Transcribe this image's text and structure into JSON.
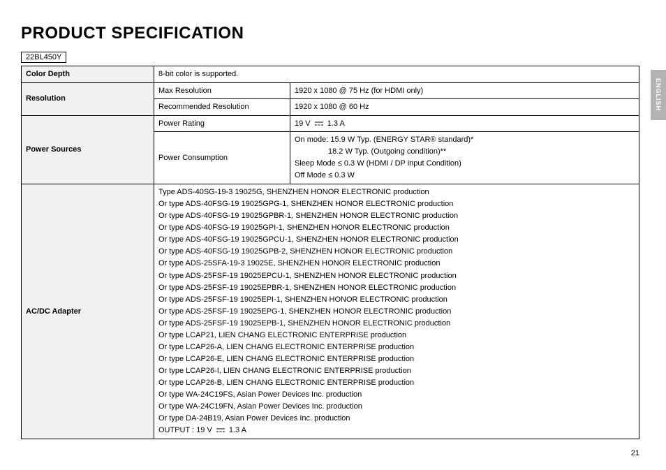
{
  "title": "PRODUCT SPECIFICATION",
  "model": "22BL450Y",
  "side_tab": "ENGLISH",
  "page_number": "21",
  "rows": {
    "color_depth": {
      "label": "Color Depth",
      "value": "8-bit color is supported."
    },
    "resolution": {
      "label": "Resolution",
      "max": {
        "label": "Max Resolution",
        "value": "1920 x 1080 @ 75 Hz (for HDMI only)"
      },
      "rec": {
        "label": "Recommended Resolution",
        "value": "1920 x 1080 @ 60 Hz"
      }
    },
    "power_sources": {
      "label": "Power Sources",
      "rating": {
        "label": "Power Rating",
        "prefix": "19 V ",
        "suffix": " 1.3 A"
      },
      "consumption": {
        "label": "Power Consumption",
        "l1": "On mode: 15.9 W Typ. (ENERGY STAR® standard)*",
        "l2": "18.2 W Typ. (Outgoing condition)**",
        "l3": "Sleep Mode ≤ 0.3 W (HDMI / DP input Condition)",
        "l4": "Off Mode ≤ 0.3 W"
      }
    },
    "adapter": {
      "label": "AC/DC Adapter",
      "lines": [
        "Type ADS-40SG-19-3 19025G, SHENZHEN HONOR ELECTRONIC production",
        "Or type ADS-40FSG-19 19025GPG-1, SHENZHEN HONOR ELECTRONIC production",
        "Or type ADS-40FSG-19 19025GPBR-1, SHENZHEN HONOR ELECTRONIC production",
        "Or type ADS-40FSG-19 19025GPI-1, SHENZHEN HONOR ELECTRONIC production",
        "Or type ADS-40FSG-19 19025GPCU-1, SHENZHEN HONOR ELECTRONIC production",
        "Or type ADS-40FSG-19 19025GPB-2, SHENZHEN HONOR ELECTRONIC production",
        "Or type ADS-25SFA-19-3 19025E, SHENZHEN HONOR ELECTRONIC production",
        "Or type ADS-25FSF-19 19025EPCU-1, SHENZHEN HONOR ELECTRONIC production",
        "Or type ADS-25FSF-19 19025EPBR-1, SHENZHEN HONOR ELECTRONIC production",
        "Or type ADS-25FSF-19 19025EPI-1, SHENZHEN HONOR ELECTRONIC production",
        "Or type ADS-25FSF-19 19025EPG-1, SHENZHEN HONOR ELECTRONIC production",
        "Or type ADS-25FSF-19 19025EPB-1, SHENZHEN HONOR ELECTRONIC production",
        "Or type LCAP21, LIEN CHANG ELECTRONIC ENTERPRISE production",
        "Or type LCAP26-A, LIEN CHANG ELECTRONIC ENTERPRISE production",
        "Or type LCAP26-E, LIEN CHANG ELECTRONIC ENTERPRISE production",
        "Or type LCAP26-I, LIEN CHANG ELECTRONIC ENTERPRISE production",
        "Or type LCAP26-B, LIEN CHANG ELECTRONIC ENTERPRISE production",
        "Or type WA-24C19FS, Asian Power Devices Inc. production",
        "Or type WA-24C19FN, Asian Power Devices Inc. production",
        "Or type DA-24B19, Asian Power Devices Inc. production"
      ],
      "output_prefix": "OUTPUT : 19 V ",
      "output_suffix": " 1.3 A"
    }
  }
}
